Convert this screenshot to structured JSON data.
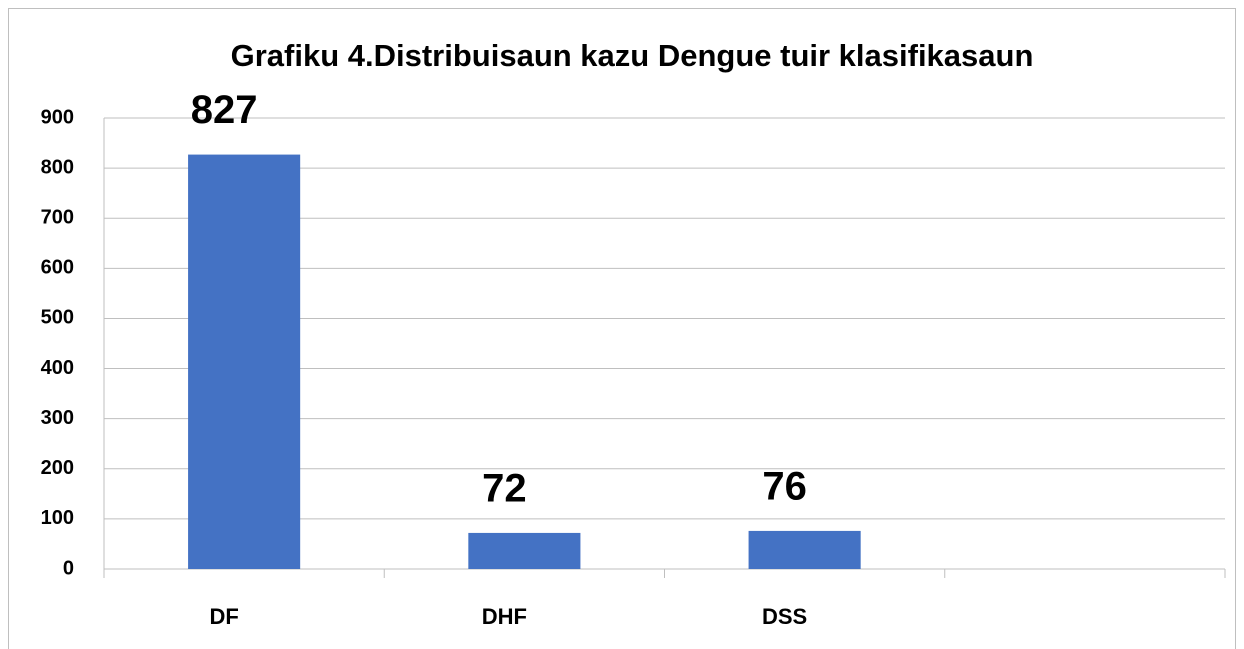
{
  "chart_data": {
    "type": "bar",
    "title": "Grafiku 4.Distribuisaun kazu Dengue tuir klasifikasaun",
    "categories": [
      "DF",
      "DHF",
      "DSS",
      null
    ],
    "values": [
      827,
      72,
      76,
      null
    ],
    "color": "#4472c4",
    "ylim": [
      0,
      900
    ],
    "yticks": [
      0,
      100,
      200,
      300,
      400,
      500,
      600,
      700,
      800,
      900
    ],
    "grid": true
  }
}
